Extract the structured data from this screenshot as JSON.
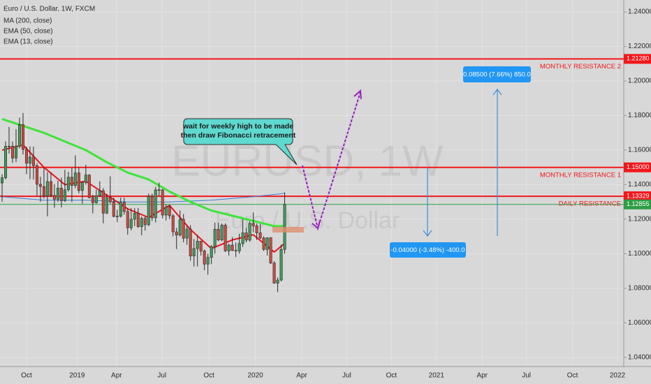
{
  "chart_data": {
    "type": "candlestick",
    "title": "Euro / U.S. Dollar, 1W, FXCM",
    "watermark": "EURUSD, 1W",
    "watermark_subtitle": "Euro / U.S. Dollar",
    "grid": true,
    "xlim": [
      -0.6,
      178.2
    ],
    "ylim": [
      1.0347,
      1.2469
    ],
    "xticks": [
      {
        "value": 7,
        "label": "Oct"
      },
      {
        "value": 21.5,
        "label": "2019"
      },
      {
        "value": 32.8,
        "label": "Apr"
      },
      {
        "value": 45.8,
        "label": "Jul"
      },
      {
        "value": 59.3,
        "label": "Oct"
      },
      {
        "value": 72.6,
        "label": "2020"
      },
      {
        "value": 85.9,
        "label": "Apr"
      },
      {
        "value": 98.8,
        "label": "Jul"
      },
      {
        "value": 111.6,
        "label": "Oct"
      },
      {
        "value": 124.5,
        "label": "2021"
      },
      {
        "value": 137.6,
        "label": "Apr"
      },
      {
        "value": 150.3,
        "label": "Jul"
      },
      {
        "value": 163.5,
        "label": "Oct"
      },
      {
        "value": 176.4,
        "label": "2022"
      }
    ],
    "yticks": [
      {
        "value": 1.04,
        "label": "1.04000"
      },
      {
        "value": 1.06,
        "label": "1.06000"
      },
      {
        "value": 1.08,
        "label": "1.08000"
      },
      {
        "value": 1.1,
        "label": "1.10000"
      },
      {
        "value": 1.12,
        "label": "1.12000"
      },
      {
        "value": 1.14,
        "label": "1.14000"
      },
      {
        "value": 1.16,
        "label": "1.16000"
      },
      {
        "value": 1.18,
        "label": "1.18000"
      },
      {
        "value": 1.2,
        "label": "1.20000"
      },
      {
        "value": 1.22,
        "label": "1.22000"
      },
      {
        "value": 1.24,
        "label": "1.24000"
      }
    ],
    "candles": {
      "up_color": "#3f9c5c",
      "down_color": "#cf4a3e",
      "open": [
        1.141,
        1.144,
        1.1622,
        1.1623,
        1.1554,
        1.1622,
        1.1748,
        1.1604,
        1.1524,
        1.156,
        1.151,
        1.1402,
        1.1389,
        1.1334,
        1.1418,
        1.1338,
        1.1316,
        1.138,
        1.1307,
        1.137,
        1.1443,
        1.1395,
        1.1468,
        1.1366,
        1.1413,
        1.1456,
        1.1325,
        1.1295,
        1.1336,
        1.1365,
        1.1235,
        1.1325,
        1.13,
        1.1216,
        1.1217,
        1.1297,
        1.1245,
        1.115,
        1.12,
        1.1234,
        1.1157,
        1.1205,
        1.1168,
        1.1333,
        1.1208,
        1.137,
        1.137,
        1.1224,
        1.127,
        1.122,
        1.1127,
        1.1108,
        1.12,
        1.109,
        1.1143,
        1.0987,
        1.103,
        1.1073,
        1.1016,
        1.094,
        1.0979,
        1.1042,
        1.1142,
        1.108,
        1.1166,
        1.1017,
        1.105,
        1.1019,
        1.1016,
        1.1059,
        1.1121,
        1.1079,
        1.1176,
        1.1162,
        1.1121,
        1.1091,
        1.1025,
        1.1093,
        1.0946,
        1.083,
        1.0848,
        1.1025
      ],
      "high": [
        1.146,
        1.165,
        1.1734,
        1.165,
        1.1721,
        1.1788,
        1.1815,
        1.162,
        1.1621,
        1.162,
        1.1525,
        1.1446,
        1.15,
        1.1473,
        1.1472,
        1.1402,
        1.1423,
        1.1442,
        1.1486,
        1.1474,
        1.1498,
        1.157,
        1.15,
        1.1416,
        1.1515,
        1.146,
        1.1341,
        1.1371,
        1.142,
        1.138,
        1.1345,
        1.1448,
        1.1325,
        1.1255,
        1.1325,
        1.1324,
        1.1263,
        1.1265,
        1.1264,
        1.1265,
        1.1215,
        1.1215,
        1.1348,
        1.1348,
        1.1387,
        1.1412,
        1.1375,
        1.1286,
        1.1283,
        1.123,
        1.115,
        1.125,
        1.123,
        1.116,
        1.1165,
        1.1085,
        1.1109,
        1.1075,
        1.1025,
        1.1,
        1.105,
        1.118,
        1.1179,
        1.1175,
        1.1176,
        1.1058,
        1.1097,
        1.1065,
        1.1116,
        1.12,
        1.115,
        1.1188,
        1.1239,
        1.1175,
        1.1173,
        1.1101,
        1.1095,
        1.1096,
        1.0957,
        1.0863,
        1.1053,
        1.1355
      ],
      "low": [
        1.1301,
        1.143,
        1.158,
        1.1526,
        1.153,
        1.161,
        1.1575,
        1.146,
        1.1432,
        1.143,
        1.1336,
        1.1301,
        1.132,
        1.1216,
        1.1328,
        1.1267,
        1.13,
        1.1268,
        1.13,
        1.136,
        1.13,
        1.138,
        1.135,
        1.1289,
        1.14,
        1.132,
        1.1234,
        1.129,
        1.133,
        1.1176,
        1.123,
        1.129,
        1.1211,
        1.1183,
        1.121,
        1.1226,
        1.111,
        1.1135,
        1.116,
        1.115,
        1.1107,
        1.1134,
        1.116,
        1.119,
        1.1181,
        1.1335,
        1.1205,
        1.1192,
        1.12,
        1.1101,
        1.1027,
        1.11,
        1.1066,
        1.1052,
        1.096,
        1.0926,
        1.0927,
        1.099,
        1.0905,
        1.0879,
        1.094,
        1.1,
        1.1072,
        1.1073,
        1.101,
        1.0989,
        1.1015,
        1.0981,
        1.1,
        1.104,
        1.1066,
        1.107,
        1.1125,
        1.108,
        1.1085,
        1.1016,
        1.099,
        1.0941,
        1.0827,
        1.0778,
        1.084,
        1.1
      ],
      "close": [
        1.144,
        1.1622,
        1.1623,
        1.1554,
        1.1622,
        1.1748,
        1.1604,
        1.1524,
        1.156,
        1.151,
        1.1402,
        1.1389,
        1.1334,
        1.1418,
        1.1338,
        1.1316,
        1.138,
        1.1307,
        1.137,
        1.1443,
        1.1395,
        1.1468,
        1.1366,
        1.1413,
        1.1456,
        1.1325,
        1.1295,
        1.1336,
        1.1365,
        1.1235,
        1.1325,
        1.13,
        1.1216,
        1.1217,
        1.1297,
        1.1245,
        1.115,
        1.12,
        1.1234,
        1.1157,
        1.1205,
        1.1168,
        1.1333,
        1.1208,
        1.137,
        1.137,
        1.1224,
        1.127,
        1.122,
        1.1127,
        1.1108,
        1.12,
        1.109,
        1.1143,
        1.0987,
        1.103,
        1.1073,
        1.1016,
        1.094,
        1.0979,
        1.1042,
        1.1142,
        1.108,
        1.1166,
        1.1017,
        1.105,
        1.1019,
        1.1016,
        1.1059,
        1.1121,
        1.1079,
        1.1176,
        1.1162,
        1.1121,
        1.1091,
        1.1025,
        1.1093,
        1.0946,
        1.083,
        1.0848,
        1.1025,
        1.1285
      ]
    },
    "series": [
      {
        "name": "MA (200, close)",
        "color": "#3d7fd6",
        "width": 1,
        "x": [
          0,
          12,
          24,
          36,
          48,
          60,
          72,
          81
        ],
        "values": [
          1.133,
          1.131,
          1.131,
          1.13,
          1.13,
          1.131,
          1.133,
          1.135
        ]
      },
      {
        "name": "EMA (50, close)",
        "color": "#3ee43a",
        "width": 3,
        "x": [
          0,
          6,
          12,
          18,
          24,
          30,
          36,
          42,
          48,
          54,
          60,
          66,
          72,
          78,
          81
        ],
        "values": [
          1.178,
          1.174,
          1.17,
          1.165,
          1.16,
          1.153,
          1.147,
          1.143,
          1.136,
          1.13,
          1.125,
          1.122,
          1.119,
          1.116,
          1.116
        ]
      },
      {
        "name": "EMA (13, close)",
        "color": "#e8141c",
        "width": 2,
        "x": [
          0,
          6,
          12,
          18,
          24,
          30,
          36,
          42,
          48,
          54,
          60,
          66,
          72,
          78,
          81
        ],
        "values": [
          1.16,
          1.163,
          1.15,
          1.14,
          1.142,
          1.134,
          1.126,
          1.121,
          1.128,
          1.114,
          1.103,
          1.108,
          1.111,
          1.101,
          1.106
        ]
      }
    ],
    "levels": [
      {
        "value": 1.2128,
        "label": "1.21280",
        "name": "MONTHLY RESISTANCE 2",
        "color": "#f2171b"
      },
      {
        "value": 1.15,
        "label": "1.15000",
        "name": "MONTHLY RESISTANCE 1",
        "color": "#f2171b"
      },
      {
        "value": 1.13329,
        "label": "1.13329",
        "name": "DAILY RESISTANCE",
        "color": "#f2171b"
      },
      {
        "value": 1.12855,
        "label": "1.12855",
        "color": "#2e9e46"
      }
    ],
    "annotations": {
      "callout": [
        "wait for weekly high to be made",
        "then draw Fibonacci retracement"
      ],
      "measure_up": "0.08500 (7.66%) 850.0",
      "measure_down": "-0.04000 (-3.48%) -400.0"
    }
  }
}
